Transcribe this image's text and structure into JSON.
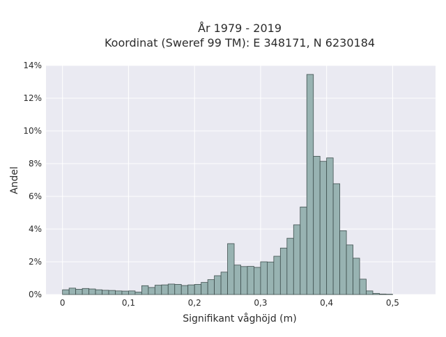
{
  "chart_data": {
    "type": "bar",
    "title": "År 1979 - 2019",
    "subtitle": "Koordinat (Sweref 99 TM): E 348171, N 6230184",
    "xlabel": "Signifikant våghöjd (m)",
    "ylabel": "Andel",
    "xlim": [
      -0.025,
      0.565
    ],
    "ylim": [
      0,
      0.14
    ],
    "grid": true,
    "x_ticks": [
      0,
      0.1,
      0.2,
      0.3,
      0.4,
      0.5
    ],
    "x_tick_labels": [
      "0",
      "0,1",
      "0,2",
      "0,3",
      "0,4",
      "0,5"
    ],
    "y_ticks": [
      0,
      0.02,
      0.04,
      0.06,
      0.08,
      0.1,
      0.12,
      0.14
    ],
    "y_tick_labels": [
      "0%",
      "2%",
      "4%",
      "6%",
      "8%",
      "10%",
      "12%",
      "14%"
    ],
    "bin_start": 0,
    "bin_width": 0.01,
    "values": [
      0.0029,
      0.0039,
      0.0032,
      0.0037,
      0.0034,
      0.0029,
      0.0026,
      0.0025,
      0.0022,
      0.0021,
      0.0022,
      0.0015,
      0.0054,
      0.0043,
      0.0057,
      0.0059,
      0.0064,
      0.0062,
      0.0055,
      0.0059,
      0.0062,
      0.0074,
      0.0091,
      0.0115,
      0.0137,
      0.0311,
      0.018,
      0.0171,
      0.0172,
      0.0166,
      0.02,
      0.0199,
      0.0234,
      0.0284,
      0.0344,
      0.0426,
      0.0535,
      0.1345,
      0.0845,
      0.0814,
      0.0835,
      0.0677,
      0.039,
      0.0303,
      0.0222,
      0.0094,
      0.0022,
      0.0007,
      0.0003,
      0.0002
    ],
    "colors": {
      "bar_fill": "#98b3b2",
      "bar_stroke": "#3f4f4e",
      "plot_bg": "#eaeaf2",
      "grid": "#ffffff"
    }
  }
}
